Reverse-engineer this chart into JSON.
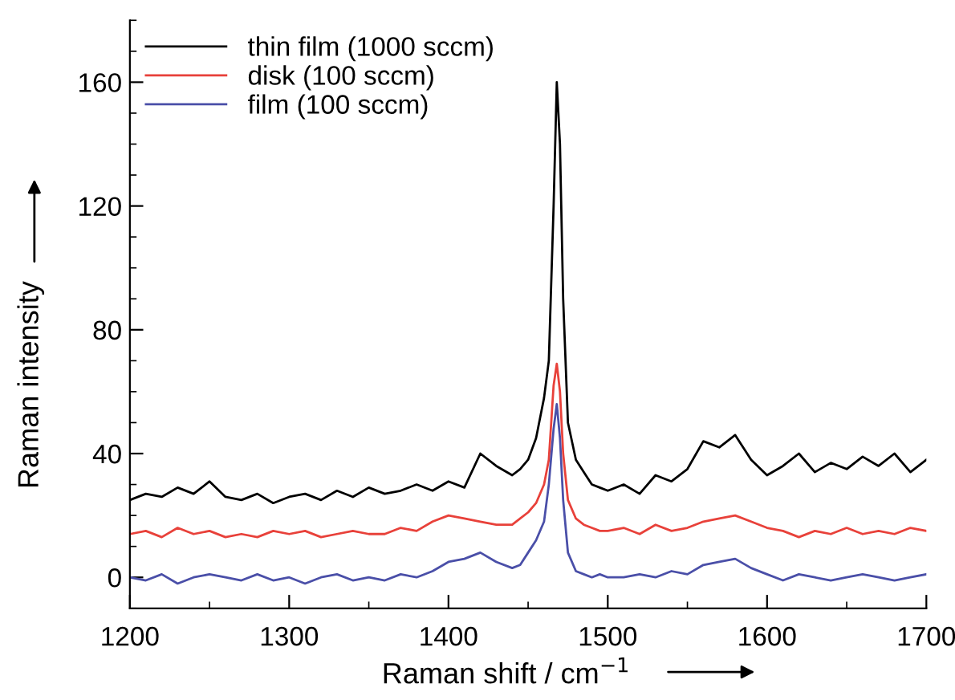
{
  "chart_data": {
    "type": "line",
    "xlabel": "Raman shift / cm$^{−1}$",
    "ylabel": "Raman intensity",
    "x": [
      1200,
      1210,
      1220,
      1230,
      1240,
      1250,
      1260,
      1270,
      1280,
      1290,
      1300,
      1310,
      1320,
      1330,
      1340,
      1350,
      1360,
      1370,
      1380,
      1390,
      1400,
      1410,
      1420,
      1430,
      1440,
      1445,
      1450,
      1455,
      1460,
      1463,
      1466,
      1468,
      1470,
      1472,
      1475,
      1480,
      1485,
      1490,
      1495,
      1500,
      1510,
      1520,
      1530,
      1540,
      1550,
      1560,
      1570,
      1580,
      1590,
      1600,
      1610,
      1620,
      1630,
      1640,
      1650,
      1660,
      1670,
      1680,
      1690,
      1700
    ],
    "series": [
      {
        "name": "thin film (1000 sccm)",
        "color": "#000000",
        "values": [
          25,
          27,
          26,
          29,
          27,
          31,
          26,
          25,
          27,
          24,
          26,
          27,
          25,
          28,
          26,
          29,
          27,
          28,
          30,
          28,
          31,
          29,
          40,
          36,
          33,
          35,
          38,
          45,
          58,
          70,
          120,
          160,
          140,
          90,
          50,
          38,
          34,
          30,
          29,
          28,
          30,
          27,
          33,
          31,
          35,
          44,
          42,
          46,
          38,
          33,
          36,
          40,
          34,
          37,
          35,
          39,
          36,
          40,
          34,
          38
        ]
      },
      {
        "name": "disk (100 sccm)",
        "color": "#e8413a",
        "values": [
          14,
          15,
          13,
          16,
          14,
          15,
          13,
          14,
          13,
          15,
          14,
          15,
          13,
          14,
          15,
          14,
          14,
          16,
          15,
          18,
          20,
          19,
          18,
          17,
          17,
          19,
          21,
          24,
          30,
          38,
          62,
          69,
          60,
          40,
          25,
          19,
          17,
          16,
          15,
          15,
          16,
          14,
          17,
          15,
          16,
          18,
          19,
          20,
          18,
          16,
          15,
          13,
          15,
          14,
          16,
          14,
          15,
          14,
          16,
          15
        ]
      },
      {
        "name": "film (100 sccm)",
        "color": "#4a4fa8",
        "values": [
          0,
          -1,
          1,
          -2,
          0,
          1,
          0,
          -1,
          1,
          -1,
          0,
          -2,
          0,
          1,
          -1,
          0,
          -1,
          1,
          0,
          2,
          5,
          6,
          8,
          5,
          3,
          4,
          8,
          12,
          18,
          30,
          48,
          56,
          45,
          25,
          8,
          2,
          1,
          0,
          1,
          0,
          0,
          1,
          0,
          2,
          1,
          4,
          5,
          6,
          3,
          1,
          -1,
          1,
          0,
          -1,
          0,
          1,
          0,
          -1,
          0,
          1
        ]
      }
    ],
    "xlim": [
      1200,
      1700
    ],
    "ylim": [
      -10,
      180
    ],
    "xticks": [
      1200,
      {
        "value": 1250,
        "label": null
      },
      1300,
      {
        "value": 1350,
        "label": null
      },
      1400,
      {
        "value": 1450,
        "label": null
      },
      1500,
      {
        "value": 1550,
        "label": null
      },
      1600,
      {
        "value": 1650,
        "label": null
      },
      1700
    ],
    "yticks": [
      {
        "value": -10,
        "label": null
      },
      0,
      {
        "value": 10,
        "label": null
      },
      {
        "value": 20,
        "label": null
      },
      {
        "value": 30,
        "label": null
      },
      40,
      {
        "value": 50,
        "label": null
      },
      {
        "value": 60,
        "label": null
      },
      {
        "value": 70,
        "label": null
      },
      80,
      {
        "value": 90,
        "label": null
      },
      {
        "value": 100,
        "label": null
      },
      {
        "value": 110,
        "label": null
      },
      120,
      {
        "value": 130,
        "label": null
      },
      {
        "value": 140,
        "label": null
      },
      {
        "value": 150,
        "label": null
      },
      160,
      {
        "value": 170,
        "label": null
      },
      {
        "value": 180,
        "label": null
      }
    ],
    "grid": false,
    "legend": "top left",
    "marker": "none",
    "line_style": "solid"
  }
}
